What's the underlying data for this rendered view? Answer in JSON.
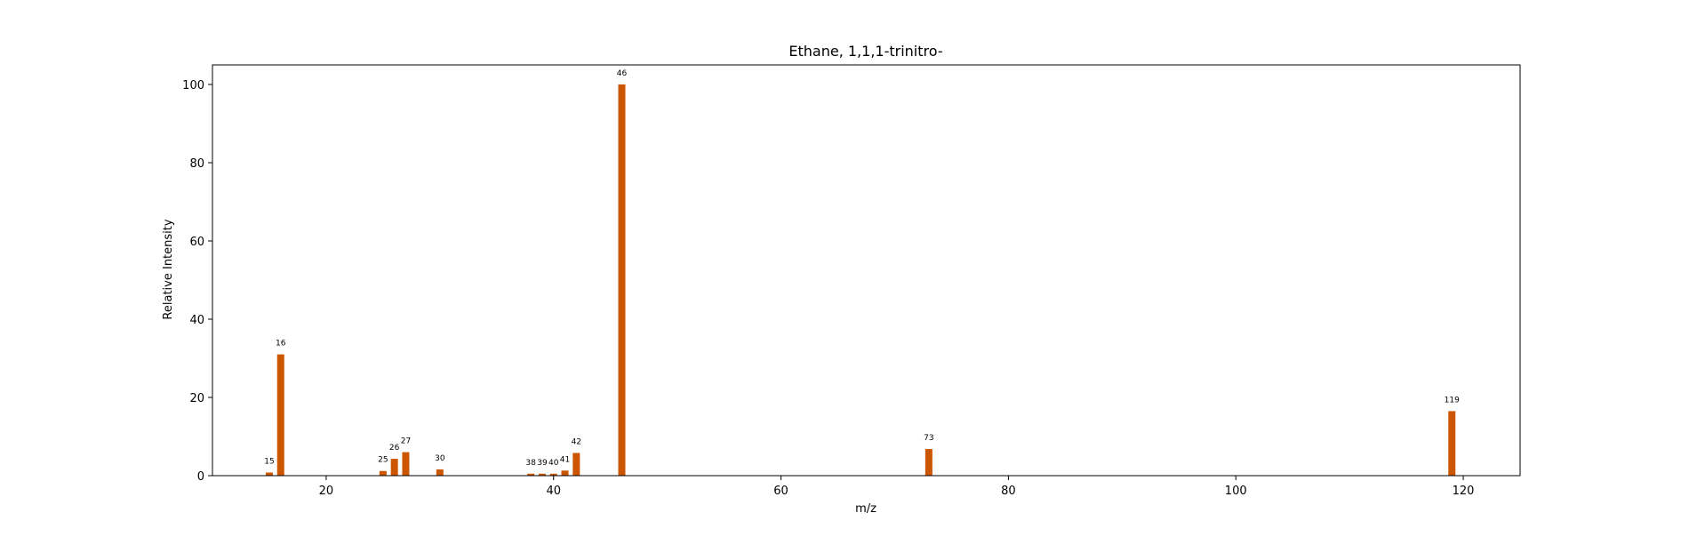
{
  "colors": {
    "bar": "#cc5500",
    "axis": "#000000",
    "background": "#ffffff"
  },
  "chart_data": {
    "type": "bar",
    "title": "Ethane, 1,1,1-trinitro-",
    "xlabel": "m/z",
    "ylabel": "Relative Intensity",
    "xlim": [
      10,
      125
    ],
    "ylim": [
      0,
      105
    ],
    "xticks": [
      20,
      40,
      60,
      80,
      100,
      120
    ],
    "yticks": [
      0,
      20,
      40,
      60,
      80,
      100
    ],
    "grid": false,
    "legend": "none",
    "x": [
      15,
      16,
      25,
      26,
      27,
      30,
      38,
      39,
      40,
      41,
      42,
      46,
      73,
      119
    ],
    "values": [
      0.8,
      31.0,
      1.2,
      4.3,
      6.0,
      1.6,
      0.5,
      0.5,
      0.5,
      1.3,
      5.8,
      100.0,
      6.8,
      16.5
    ],
    "labels": [
      "15",
      "16",
      "25",
      "26",
      "27",
      "30",
      "38",
      "39",
      "40",
      "41",
      "42",
      "46",
      "73",
      "119"
    ]
  }
}
